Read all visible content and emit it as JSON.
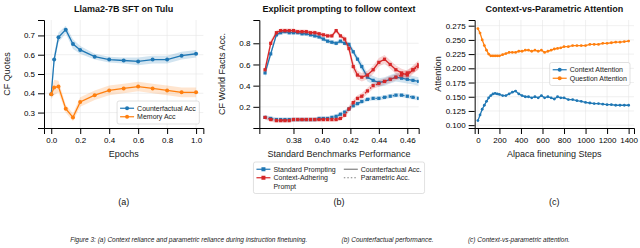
{
  "chart_data": [
    {
      "type": "line",
      "title": "Llama2-7B SFT on Tulu",
      "subtitle": "(a)",
      "x_label": "Epochs",
      "y_label": "CF Quotes",
      "xlim": [
        -0.05,
        1.05
      ],
      "ylim": [
        0.22,
        0.78
      ],
      "xticks": [
        {
          "value": 0.0,
          "label": "0.0"
        },
        0.2,
        0.4,
        0.6,
        0.8,
        {
          "value": 1.0,
          "label": "1.0"
        }
      ],
      "yticks": [
        0.3,
        0.4,
        0.5,
        0.6,
        0.7
      ],
      "grid": true,
      "legend": "lower right",
      "marker": "circle",
      "series": [
        {
          "name": "Counterfactual Acc",
          "color": "#1f77b4",
          "x": [
            0.0,
            0.02,
            0.05,
            0.1,
            0.15,
            0.2,
            0.3,
            0.4,
            0.5,
            0.6,
            0.7,
            0.8,
            0.9,
            1.0
          ],
          "values": [
            0.395,
            0.575,
            0.69,
            0.73,
            0.655,
            0.625,
            0.59,
            0.575,
            0.57,
            0.565,
            0.575,
            0.575,
            0.595,
            0.605
          ],
          "errors": [
            0.025,
            0.03,
            0.025,
            0.02,
            0.025,
            0.02,
            0.015,
            0.015,
            0.015,
            0.02,
            0.02,
            0.02,
            0.02,
            0.02
          ]
        },
        {
          "name": "Memory Acc",
          "color": "#ff7f0e",
          "x": [
            0.0,
            0.02,
            0.05,
            0.1,
            0.15,
            0.2,
            0.3,
            0.4,
            0.5,
            0.6,
            0.7,
            0.8,
            0.9,
            1.0
          ],
          "values": [
            0.395,
            0.43,
            0.435,
            0.32,
            0.275,
            0.355,
            0.39,
            0.415,
            0.425,
            0.435,
            0.425,
            0.415,
            0.405,
            0.405
          ],
          "errors": [
            0.025,
            0.04,
            0.03,
            0.02,
            0.02,
            0.025,
            0.025,
            0.025,
            0.025,
            0.025,
            0.025,
            0.025,
            0.025,
            0.025
          ]
        }
      ]
    },
    {
      "type": "line",
      "title": "Explicit prompting to follow context",
      "subtitle": "(b)",
      "x_label": "Standard Benchmarks Performance",
      "y_label": "CF World Facts Acc.",
      "xlim": [
        0.356,
        0.468
      ],
      "ylim": [
        0.0,
        1.02
      ],
      "xticks": [
        0.38,
        {
          "value": 0.4,
          "label": "0.40"
        },
        0.42,
        0.44,
        0.46
      ],
      "yticks": [
        0.2,
        0.4,
        0.6,
        0.8
      ],
      "grid": true,
      "legend": "bottom",
      "legend_entries": [
        {
          "name": "Standard Prompting",
          "color": "#1f77b4",
          "marker": "square"
        },
        {
          "name": "Context-Adhering\nPrompt",
          "color": "#d62728",
          "marker": "square"
        },
        {
          "name": "Counterfactual Acc.",
          "color": "gray",
          "line_style": "solid"
        },
        {
          "name": "Parametric Acc.",
          "color": "gray",
          "line_style": "dotted"
        }
      ],
      "series": [
        {
          "color": "#1f77b4",
          "line_style": "solid",
          "marker": "square",
          "x": [
            0.36,
            0.364,
            0.368,
            0.371,
            0.374,
            0.377,
            0.38,
            0.383,
            0.386,
            0.389,
            0.392,
            0.395,
            0.398,
            0.401,
            0.404,
            0.407,
            0.41,
            0.413,
            0.416,
            0.419,
            0.422,
            0.425,
            0.428,
            0.432,
            0.436,
            0.44,
            0.444,
            0.448,
            0.452,
            0.456,
            0.46,
            0.464,
            0.468
          ],
          "values": [
            0.52,
            0.7,
            0.88,
            0.9,
            0.91,
            0.9,
            0.9,
            0.9,
            0.89,
            0.89,
            0.88,
            0.87,
            0.86,
            0.84,
            0.82,
            0.81,
            0.8,
            0.82,
            0.8,
            0.79,
            0.72,
            0.65,
            0.58,
            0.48,
            0.45,
            0.43,
            0.44,
            0.46,
            0.48,
            0.47,
            0.46,
            0.45,
            0.44
          ],
          "errors": [
            0.04,
            0.03,
            0.02,
            0.02,
            0.02,
            0.02,
            0.02,
            0.02,
            0.02,
            0.02,
            0.02,
            0.02,
            0.02,
            0.02,
            0.02,
            0.02,
            0.02,
            0.02,
            0.02,
            0.02,
            0.03,
            0.03,
            0.04,
            0.04,
            0.04,
            0.04,
            0.04,
            0.04,
            0.04,
            0.04,
            0.04,
            0.04,
            0.04
          ]
        },
        {
          "color": "#1f77b4",
          "line_style": "dotted",
          "marker": "square",
          "x": [
            0.36,
            0.364,
            0.368,
            0.371,
            0.374,
            0.377,
            0.38,
            0.383,
            0.386,
            0.389,
            0.392,
            0.395,
            0.398,
            0.401,
            0.404,
            0.407,
            0.41,
            0.413,
            0.416,
            0.419,
            0.422,
            0.425,
            0.428,
            0.432,
            0.436,
            0.44,
            0.444,
            0.448,
            0.452,
            0.456,
            0.46,
            0.464,
            0.468
          ],
          "values": [
            0.1,
            0.09,
            0.08,
            0.08,
            0.08,
            0.08,
            0.08,
            0.08,
            0.08,
            0.08,
            0.08,
            0.08,
            0.09,
            0.09,
            0.09,
            0.1,
            0.11,
            0.13,
            0.15,
            0.18,
            0.21,
            0.23,
            0.25,
            0.27,
            0.28,
            0.28,
            0.29,
            0.3,
            0.31,
            0.31,
            0.3,
            0.29,
            0.28
          ],
          "errors": [
            0.02,
            0.02,
            0.02,
            0.02,
            0.02,
            0.02,
            0.02,
            0.02,
            0.02,
            0.02,
            0.02,
            0.02,
            0.02,
            0.02,
            0.02,
            0.02,
            0.02,
            0.02,
            0.02,
            0.02,
            0.02,
            0.02,
            0.02,
            0.02,
            0.02,
            0.02,
            0.02,
            0.02,
            0.02,
            0.02,
            0.02,
            0.02,
            0.02
          ]
        },
        {
          "color": "#d62728",
          "line_style": "solid",
          "marker": "square",
          "x": [
            0.36,
            0.364,
            0.368,
            0.371,
            0.374,
            0.377,
            0.38,
            0.383,
            0.386,
            0.389,
            0.392,
            0.395,
            0.398,
            0.401,
            0.404,
            0.407,
            0.41,
            0.413,
            0.416,
            0.419,
            0.422,
            0.425,
            0.428,
            0.432,
            0.436,
            0.44,
            0.444,
            0.448,
            0.452,
            0.456,
            0.46,
            0.464,
            0.468
          ],
          "values": [
            0.55,
            0.8,
            0.9,
            0.92,
            0.92,
            0.92,
            0.92,
            0.91,
            0.91,
            0.91,
            0.9,
            0.9,
            0.89,
            0.88,
            0.87,
            0.87,
            0.92,
            0.87,
            0.84,
            0.75,
            0.58,
            0.5,
            0.48,
            0.5,
            0.55,
            0.62,
            0.65,
            0.6,
            0.55,
            0.52,
            0.5,
            0.55,
            0.6
          ],
          "errors": [
            0.04,
            0.03,
            0.02,
            0.02,
            0.02,
            0.02,
            0.02,
            0.02,
            0.02,
            0.02,
            0.02,
            0.02,
            0.02,
            0.02,
            0.02,
            0.02,
            0.02,
            0.02,
            0.03,
            0.04,
            0.05,
            0.04,
            0.04,
            0.04,
            0.04,
            0.04,
            0.04,
            0.04,
            0.04,
            0.04,
            0.04,
            0.04,
            0.04
          ]
        },
        {
          "color": "#d62728",
          "line_style": "dotted",
          "marker": "square",
          "x": [
            0.36,
            0.364,
            0.368,
            0.371,
            0.374,
            0.377,
            0.38,
            0.383,
            0.386,
            0.389,
            0.392,
            0.395,
            0.398,
            0.401,
            0.404,
            0.407,
            0.41,
            0.413,
            0.416,
            0.419,
            0.422,
            0.425,
            0.428,
            0.432,
            0.436,
            0.44,
            0.444,
            0.448,
            0.452,
            0.456,
            0.46,
            0.464,
            0.468
          ],
          "values": [
            0.1,
            0.08,
            0.07,
            0.07,
            0.07,
            0.07,
            0.08,
            0.08,
            0.08,
            0.08,
            0.08,
            0.08,
            0.08,
            0.08,
            0.08,
            0.08,
            0.08,
            0.09,
            0.12,
            0.18,
            0.24,
            0.28,
            0.3,
            0.35,
            0.4,
            0.42,
            0.44,
            0.46,
            0.48,
            0.5,
            0.52,
            0.55,
            0.58
          ],
          "errors": [
            0.02,
            0.02,
            0.02,
            0.02,
            0.02,
            0.02,
            0.02,
            0.02,
            0.02,
            0.02,
            0.02,
            0.02,
            0.02,
            0.02,
            0.02,
            0.02,
            0.02,
            0.02,
            0.02,
            0.03,
            0.03,
            0.03,
            0.03,
            0.03,
            0.03,
            0.03,
            0.03,
            0.03,
            0.03,
            0.03,
            0.03,
            0.03,
            0.03
          ]
        }
      ]
    },
    {
      "type": "line",
      "title": "Context-vs-Parametric Attention",
      "subtitle": "(c)",
      "x_label": "Alpaca finetuning Steps",
      "y_label": "Attention",
      "xlim": [
        -30,
        1450
      ],
      "ylim": [
        0.095,
        0.285
      ],
      "xticks": [
        0,
        200,
        400,
        600,
        800,
        1000,
        1200,
        1400
      ],
      "yticks": [
        {
          "value": 0.1,
          "label": "0.100"
        },
        0.125,
        {
          "value": 0.15,
          "label": "0.150"
        },
        0.175,
        {
          "value": 0.2,
          "label": "0.200"
        },
        0.225,
        {
          "value": 0.25,
          "label": "0.250"
        },
        0.275
      ],
      "grid": true,
      "legend": "center right",
      "marker": "circle",
      "series": [
        {
          "name": "Context Attention",
          "color": "#1f77b4",
          "x": [
            0,
            20,
            40,
            60,
            80,
            100,
            120,
            140,
            160,
            180,
            200,
            230,
            260,
            290,
            320,
            350,
            380,
            410,
            440,
            470,
            500,
            530,
            560,
            590,
            620,
            650,
            680,
            710,
            740,
            770,
            800,
            840,
            880,
            920,
            960,
            1000,
            1040,
            1080,
            1120,
            1160,
            1200,
            1240,
            1280,
            1320,
            1360,
            1400
          ],
          "values": [
            0.108,
            0.118,
            0.128,
            0.135,
            0.142,
            0.148,
            0.152,
            0.155,
            0.156,
            0.155,
            0.154,
            0.152,
            0.152,
            0.155,
            0.158,
            0.16,
            0.155,
            0.152,
            0.15,
            0.15,
            0.148,
            0.15,
            0.148,
            0.152,
            0.148,
            0.15,
            0.148,
            0.146,
            0.15,
            0.148,
            0.148,
            0.145,
            0.145,
            0.143,
            0.142,
            0.14,
            0.139,
            0.138,
            0.138,
            0.137,
            0.136,
            0.136,
            0.135,
            0.135,
            0.135,
            0.135
          ]
        },
        {
          "name": "Question Attention",
          "color": "#ff7f0e",
          "x": [
            0,
            20,
            40,
            60,
            80,
            100,
            120,
            140,
            160,
            180,
            200,
            230,
            260,
            290,
            320,
            350,
            380,
            410,
            440,
            470,
            500,
            530,
            560,
            590,
            620,
            650,
            680,
            710,
            740,
            770,
            800,
            840,
            880,
            920,
            960,
            1000,
            1040,
            1080,
            1120,
            1160,
            1200,
            1240,
            1280,
            1320,
            1360,
            1400
          ],
          "values": [
            0.27,
            0.262,
            0.25,
            0.24,
            0.232,
            0.225,
            0.222,
            0.222,
            0.222,
            0.222,
            0.222,
            0.224,
            0.226,
            0.228,
            0.228,
            0.228,
            0.23,
            0.23,
            0.232,
            0.232,
            0.23,
            0.232,
            0.23,
            0.232,
            0.228,
            0.23,
            0.232,
            0.234,
            0.235,
            0.236,
            0.238,
            0.238,
            0.24,
            0.24,
            0.24,
            0.24,
            0.242,
            0.242,
            0.242,
            0.244,
            0.244,
            0.245,
            0.246,
            0.246,
            0.247,
            0.248
          ]
        }
      ]
    }
  ],
  "caption": "Figure 3: (a) Context reliance and parametric reliance during instruction finetuning.                   (b) Counterfactual performance.                   (c) Context-vs-parametric attention."
}
